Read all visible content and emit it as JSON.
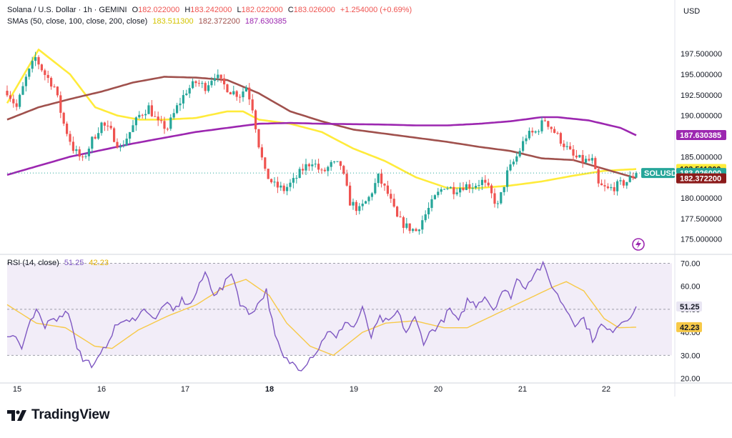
{
  "header": {
    "symbol_title": "Solana / U.S. Dollar · 1h · GEMINI",
    "ohlc": [
      {
        "k": "O",
        "v": "182.022000"
      },
      {
        "k": "H",
        "v": "183.242000"
      },
      {
        "k": "L",
        "v": "182.022000"
      },
      {
        "k": "C",
        "v": "183.026000"
      }
    ],
    "change": "+1.254000 (+0.69%)",
    "sma_label": "SMAs (50, close, 100, close, 200, close)",
    "sma_values": [
      "183.511300",
      "182.372200",
      "187.630385"
    ]
  },
  "currency": "USD",
  "rsi_legend": {
    "label": "RSI (14, close)",
    "values": [
      "51.25",
      "42.23"
    ]
  },
  "brand": "TradingView",
  "colors": {
    "up": "#26a69a",
    "down": "#ef5350",
    "sma50": "#ffeb3b",
    "sma100": "#a0514d",
    "sma200": "#9c27b0",
    "rsi": "#7e57c2",
    "rsi_ma": "#f7c948",
    "rsi_band": "#ede7f6"
  },
  "chart_data": [
    {
      "type": "candlestick",
      "title": "Solana / U.S. Dollar · 1h · GEMINI",
      "x_tick_labels": [
        "15",
        "16",
        "17",
        "18",
        "19",
        "20",
        "21",
        "22"
      ],
      "y_tick_labels": [
        "175.000000",
        "177.500000",
        "180.000000",
        "182.500000",
        "185.000000",
        "187.500000",
        "190.000000",
        "192.500000",
        "195.000000",
        "197.500000"
      ],
      "ylim": [
        173.5,
        200.2
      ],
      "close_anchors": [
        [
          0,
          193.0
        ],
        [
          3,
          191.0
        ],
        [
          6,
          194.5
        ],
        [
          9,
          197.0
        ],
        [
          12,
          195.0
        ],
        [
          15,
          193.5
        ],
        [
          18,
          189.0
        ],
        [
          21,
          186.0
        ],
        [
          24,
          184.5
        ],
        [
          27,
          187.0
        ],
        [
          30,
          189.0
        ],
        [
          33,
          188.0
        ],
        [
          36,
          186.0
        ],
        [
          39,
          188.0
        ],
        [
          42,
          190.0
        ],
        [
          45,
          191.0
        ],
        [
          48,
          189.0
        ],
        [
          51,
          188.5
        ],
        [
          54,
          191.0
        ],
        [
          57,
          193.0
        ],
        [
          60,
          194.0
        ],
        [
          63,
          193.5
        ],
        [
          66,
          195.0
        ],
        [
          68,
          194.0
        ],
        [
          71,
          193.0
        ],
        [
          74,
          192.5
        ],
        [
          76,
          193.5
        ],
        [
          78,
          191.0
        ],
        [
          80,
          186.5
        ],
        [
          82,
          183.0
        ],
        [
          85,
          181.5
        ],
        [
          88,
          181.0
        ],
        [
          91,
          182.0
        ],
        [
          94,
          183.5
        ],
        [
          97,
          184.5
        ],
        [
          100,
          183.0
        ],
        [
          103,
          184.0
        ],
        [
          106,
          184.0
        ],
        [
          109,
          179.5
        ],
        [
          112,
          178.5
        ],
        [
          115,
          180.0
        ],
        [
          118,
          182.5
        ],
        [
          121,
          180.5
        ],
        [
          124,
          177.5
        ],
        [
          127,
          176.5
        ],
        [
          130,
          176.0
        ],
        [
          133,
          178.0
        ],
        [
          136,
          180.0
        ],
        [
          139,
          181.5
        ],
        [
          142,
          181.0
        ],
        [
          145,
          181.5
        ],
        [
          148,
          181.5
        ],
        [
          151,
          182.0
        ],
        [
          153,
          181.0
        ],
        [
          156,
          179.0
        ],
        [
          159,
          183.0
        ],
        [
          162,
          185.0
        ],
        [
          165,
          187.5
        ],
        [
          168,
          188.0
        ],
        [
          171,
          189.5
        ],
        [
          174,
          188.0
        ],
        [
          177,
          186.5
        ],
        [
          180,
          185.0
        ],
        [
          183,
          184.5
        ],
        [
          186,
          184.5
        ],
        [
          188,
          181.5
        ],
        [
          191,
          181.0
        ],
        [
          194,
          181.5
        ],
        [
          197,
          182.0
        ],
        [
          200,
          183.0
        ]
      ],
      "sma_anchors": {
        "sma50": [
          [
            0,
            191.5
          ],
          [
            10,
            198.0
          ],
          [
            20,
            195.0
          ],
          [
            28,
            191.0
          ],
          [
            35,
            190.0
          ],
          [
            42,
            189.5
          ],
          [
            50,
            189.5
          ],
          [
            60,
            189.7
          ],
          [
            70,
            190.5
          ],
          [
            75,
            190.5
          ],
          [
            80,
            189.5
          ],
          [
            90,
            189.0
          ],
          [
            100,
            188.0
          ],
          [
            110,
            186.0
          ],
          [
            120,
            184.5
          ],
          [
            130,
            182.5
          ],
          [
            140,
            181.2
          ],
          [
            150,
            181.2
          ],
          [
            160,
            181.5
          ],
          [
            170,
            182.0
          ],
          [
            180,
            182.7
          ],
          [
            190,
            183.3
          ],
          [
            200,
            183.5
          ]
        ],
        "sma100": [
          [
            0,
            189.5
          ],
          [
            10,
            191.0
          ],
          [
            20,
            192.0
          ],
          [
            30,
            192.9
          ],
          [
            40,
            194.0
          ],
          [
            50,
            194.7
          ],
          [
            60,
            194.6
          ],
          [
            70,
            194.3
          ],
          [
            80,
            192.7
          ],
          [
            90,
            190.5
          ],
          [
            100,
            189.3
          ],
          [
            110,
            188.3
          ],
          [
            120,
            187.8
          ],
          [
            130,
            187.3
          ],
          [
            140,
            186.8
          ],
          [
            150,
            186.2
          ],
          [
            160,
            185.7
          ],
          [
            170,
            184.8
          ],
          [
            180,
            184.6
          ],
          [
            190,
            183.5
          ],
          [
            200,
            182.4
          ]
        ],
        "sma200": [
          [
            0,
            182.8
          ],
          [
            20,
            185.0
          ],
          [
            40,
            186.6
          ],
          [
            60,
            188.0
          ],
          [
            80,
            189.0
          ],
          [
            90,
            189.1
          ],
          [
            100,
            189.0
          ],
          [
            120,
            188.9
          ],
          [
            130,
            188.8
          ],
          [
            140,
            188.8
          ],
          [
            150,
            189.0
          ],
          [
            160,
            189.3
          ],
          [
            170,
            189.8
          ],
          [
            175,
            189.8
          ],
          [
            185,
            189.4
          ],
          [
            195,
            188.5
          ],
          [
            200,
            187.6
          ]
        ]
      },
      "last_price": "183.026000",
      "price_labels": [
        {
          "text": "183.511300",
          "value": 183.5113,
          "bg": "#ffeb3b",
          "fg": "#131722"
        },
        {
          "text": "183.026000",
          "value": 183.026,
          "bg": "#26a69a",
          "fg": "#ffffff"
        },
        {
          "text": "182.372200",
          "value": 182.3722,
          "bg": "#8b1a1a",
          "fg": "#ffffff"
        },
        {
          "text": "187.630385",
          "value": 187.630385,
          "bg": "#9c27b0",
          "fg": "#ffffff"
        }
      ],
      "symbol_tag": "SOLUSD"
    },
    {
      "type": "line",
      "title": "RSI (14, close)",
      "y_tick_labels": [
        "20.00",
        "30.00",
        "40.00",
        "50.00",
        "60.00",
        "70.00"
      ],
      "ylim": [
        18,
        72
      ],
      "band": [
        30,
        70
      ],
      "rsi_anchors": [
        [
          0,
          38.5
        ],
        [
          3,
          38.0
        ],
        [
          5,
          33.0
        ],
        [
          8,
          44.0
        ],
        [
          10,
          49.0
        ],
        [
          13,
          42.0
        ],
        [
          15,
          47.0
        ],
        [
          18,
          46.0
        ],
        [
          20,
          50.0
        ],
        [
          22,
          45.0
        ],
        [
          24,
          34.0
        ],
        [
          26,
          28.0
        ],
        [
          28,
          27.0
        ],
        [
          30,
          25.5
        ],
        [
          33,
          32.0
        ],
        [
          36,
          40.0
        ],
        [
          39,
          45.0
        ],
        [
          42,
          44.0
        ],
        [
          45,
          48.0
        ],
        [
          48,
          50.0
        ],
        [
          51,
          45.0
        ],
        [
          54,
          53.0
        ],
        [
          57,
          49.0
        ],
        [
          60,
          54.0
        ],
        [
          63,
          52.0
        ],
        [
          66,
          60.0
        ],
        [
          68,
          66.0
        ],
        [
          71,
          57.0
        ],
        [
          74,
          59.0
        ],
        [
          77,
          66.5
        ],
        [
          80,
          53.0
        ],
        [
          83,
          48.0
        ],
        [
          86,
          52.0
        ],
        [
          89,
          58.0
        ],
        [
          92,
          38.0
        ],
        [
          95,
          28.5
        ],
        [
          98,
          26.5
        ],
        [
          101,
          24.5
        ],
        [
          104,
          29.0
        ],
        [
          107,
          33.0
        ],
        [
          110,
          41.0
        ],
        [
          113,
          37.0
        ],
        [
          116,
          45.0
        ],
        [
          119,
          42.0
        ],
        [
          122,
          50.0
        ],
        [
          125,
          38.0
        ],
        [
          128,
          46.0
        ],
        [
          131,
          44.0
        ],
        [
          134,
          49.0
        ],
        [
          137,
          40.0
        ],
        [
          140,
          46.0
        ],
        [
          143,
          36.0
        ],
        [
          146,
          41.0
        ],
        [
          149,
          44.0
        ],
        [
          152,
          50.0
        ],
        [
          155,
          44.0
        ],
        [
          158,
          54.0
        ],
        [
          161,
          52.0
        ],
        [
          164,
          56.0
        ],
        [
          167,
          50.0
        ],
        [
          170,
          58.0
        ],
        [
          173,
          56.0
        ],
        [
          175,
          63.0
        ],
        [
          178,
          60.0
        ],
        [
          181,
          66.0
        ],
        [
          184,
          69.0
        ],
        [
          186,
          63.0
        ],
        [
          189,
          56.0
        ],
        [
          192,
          50.0
        ],
        [
          195,
          44.0
        ],
        [
          198,
          46.0
        ],
        [
          201,
          37.0
        ],
        [
          204,
          43.0
        ],
        [
          207,
          40.0
        ],
        [
          210,
          44.0
        ],
        [
          213,
          46.0
        ],
        [
          216,
          51.25
        ]
      ],
      "rsi_ma_anchors": [
        [
          0,
          52.0
        ],
        [
          10,
          44.0
        ],
        [
          20,
          42.0
        ],
        [
          30,
          34.0
        ],
        [
          36,
          33.0
        ],
        [
          45,
          41.0
        ],
        [
          55,
          47.0
        ],
        [
          65,
          52.0
        ],
        [
          75,
          60.0
        ],
        [
          82,
          63.0
        ],
        [
          90,
          56.0
        ],
        [
          96,
          44.0
        ],
        [
          104,
          34.0
        ],
        [
          112,
          30.0
        ],
        [
          122,
          40.0
        ],
        [
          130,
          44.0
        ],
        [
          140,
          45.0
        ],
        [
          150,
          42.0
        ],
        [
          158,
          42.0
        ],
        [
          168,
          48.0
        ],
        [
          178,
          54.0
        ],
        [
          188,
          60.0
        ],
        [
          192,
          62.0
        ],
        [
          198,
          58.0
        ],
        [
          205,
          46.0
        ],
        [
          210,
          42.0
        ],
        [
          216,
          42.23
        ]
      ],
      "last_values": [
        {
          "text": "51.25",
          "value": 51.25,
          "bg": "#e9e6f3",
          "fg": "#131722"
        },
        {
          "text": "42.23",
          "value": 42.23,
          "bg": "#f7c948",
          "fg": "#131722"
        }
      ]
    }
  ]
}
